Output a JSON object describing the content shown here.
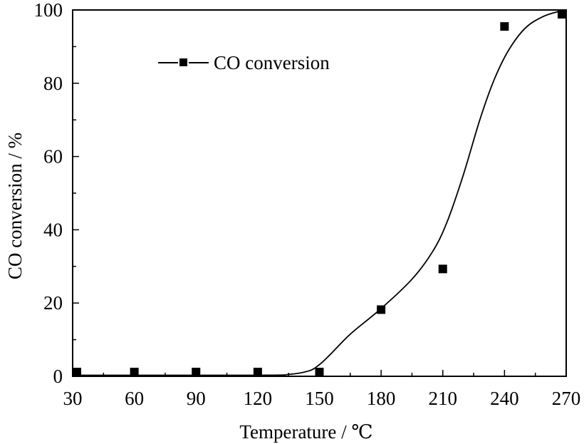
{
  "chart_data": {
    "type": "scatter",
    "title": "",
    "xlabel": "Temperature / ℃",
    "ylabel": "CO conversion / %",
    "xlim": [
      30,
      270
    ],
    "ylim": [
      0,
      100
    ],
    "xticks": [
      30,
      60,
      90,
      120,
      150,
      180,
      210,
      240,
      270
    ],
    "yticks": [
      0,
      20,
      40,
      60,
      80,
      100
    ],
    "grid": false,
    "legend": {
      "position": "top-left",
      "entries": [
        "CO conversion"
      ]
    },
    "series": [
      {
        "name": "CO conversion",
        "marker": "square",
        "color": "#000000",
        "x": [
          30,
          60,
          90,
          120,
          150,
          180,
          210,
          240,
          270
        ],
        "y": [
          0.3,
          0.3,
          0.3,
          0.3,
          0.3,
          18.2,
          29.3,
          95.5,
          100
        ]
      }
    ],
    "fit_curve": {
      "color": "#000000",
      "x": [
        30,
        120,
        135,
        145,
        150,
        155,
        165,
        180,
        195,
        205,
        212,
        220,
        228,
        235,
        242,
        250,
        258,
        265,
        270
      ],
      "y": [
        0.3,
        0.3,
        0.5,
        1.5,
        3.2,
        5.8,
        11.5,
        18.5,
        26.5,
        34,
        42,
        55,
        70,
        81,
        89,
        95,
        98,
        99.4,
        100
      ]
    }
  }
}
